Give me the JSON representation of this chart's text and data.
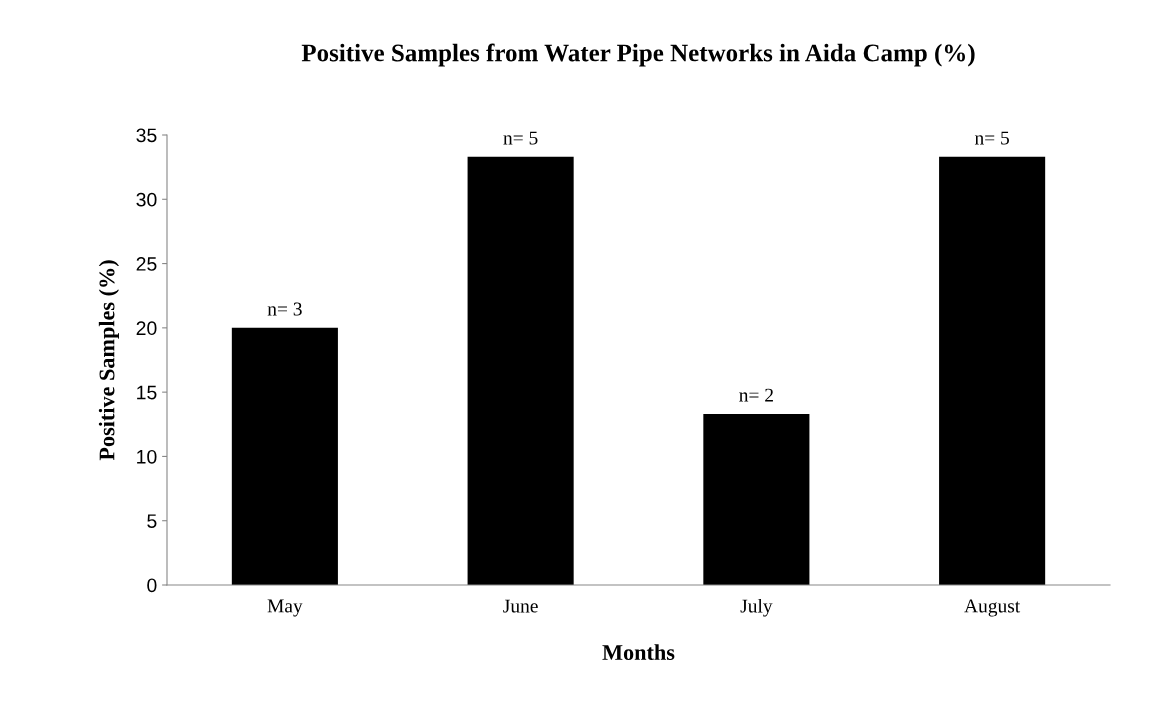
{
  "chart_data": {
    "type": "bar",
    "title": "Positive Samples from Water Pipe Networks in Aida Camp (%)",
    "xlabel": "Months",
    "ylabel": "Positive Samples (%)",
    "categories": [
      "May",
      "June",
      "July",
      "August"
    ],
    "values": [
      20,
      33.3,
      13.3,
      33.3
    ],
    "annotations": [
      {
        "text": "n= 3",
        "x": "May",
        "y": 20
      },
      {
        "text": "n= 5",
        "x": "June",
        "y": 33.3
      },
      {
        "text": "n= 2",
        "x": "July",
        "y": 13.3
      },
      {
        "text": "n= 5",
        "x": "August",
        "y": 33.3
      }
    ],
    "color": "#000000",
    "ylim": [
      0,
      35
    ],
    "yticks": [
      0,
      5,
      10,
      15,
      20,
      25,
      30,
      35
    ],
    "grid": false
  }
}
